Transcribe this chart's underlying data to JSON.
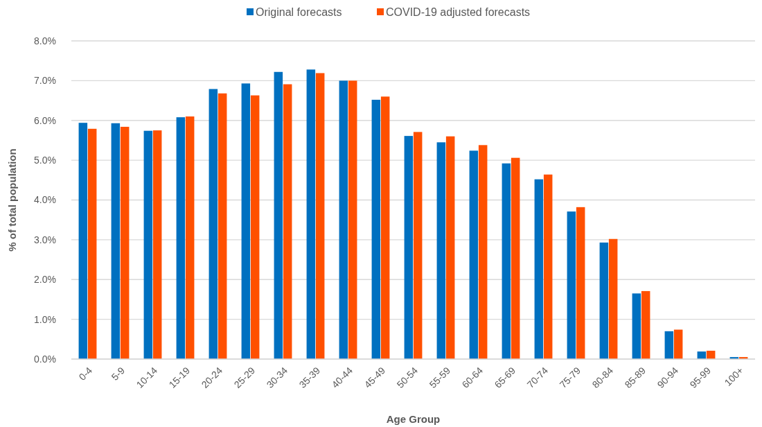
{
  "chart_data": {
    "type": "bar",
    "xlabel": "Age Group",
    "ylabel": "% of total population",
    "categories": [
      "0-4",
      "5-9",
      "10-14",
      "15-19",
      "20-24",
      "25-29",
      "30-34",
      "35-39",
      "40-44",
      "45-49",
      "50-54",
      "55-59",
      "60-64",
      "65-69",
      "70-74",
      "75-79",
      "80-84",
      "85-89",
      "90-94",
      "95-99",
      "100+"
    ],
    "series": [
      {
        "name": "Original forecasts",
        "color": "#0070c0",
        "values": [
          5.94,
          5.93,
          5.74,
          6.08,
          6.79,
          6.93,
          7.22,
          7.28,
          7.0,
          6.52,
          5.61,
          5.45,
          5.24,
          4.92,
          4.52,
          3.71,
          2.93,
          1.65,
          0.7,
          0.19,
          0.05
        ]
      },
      {
        "name": "COVID-19 adjusted forecasts",
        "color": "#ff5000",
        "values": [
          5.79,
          5.84,
          5.75,
          6.1,
          6.68,
          6.63,
          6.91,
          7.19,
          7.0,
          6.6,
          5.71,
          5.6,
          5.38,
          5.06,
          4.64,
          3.82,
          3.02,
          1.71,
          0.74,
          0.21,
          0.05
        ]
      }
    ],
    "ylim": [
      0,
      8
    ],
    "yticks": [
      {
        "value": 0,
        "label": "0.0%"
      },
      {
        "value": 1,
        "label": "1.0%"
      },
      {
        "value": 2,
        "label": "2.0%"
      },
      {
        "value": 3,
        "label": "3.0%"
      },
      {
        "value": 4,
        "label": "4.0%"
      },
      {
        "value": 5,
        "label": "5.0%"
      },
      {
        "value": 6,
        "label": "6.0%"
      },
      {
        "value": 7,
        "label": "7.0%"
      },
      {
        "value": 8,
        "label": "8.0%"
      }
    ],
    "grid": "y",
    "legend": "top"
  }
}
